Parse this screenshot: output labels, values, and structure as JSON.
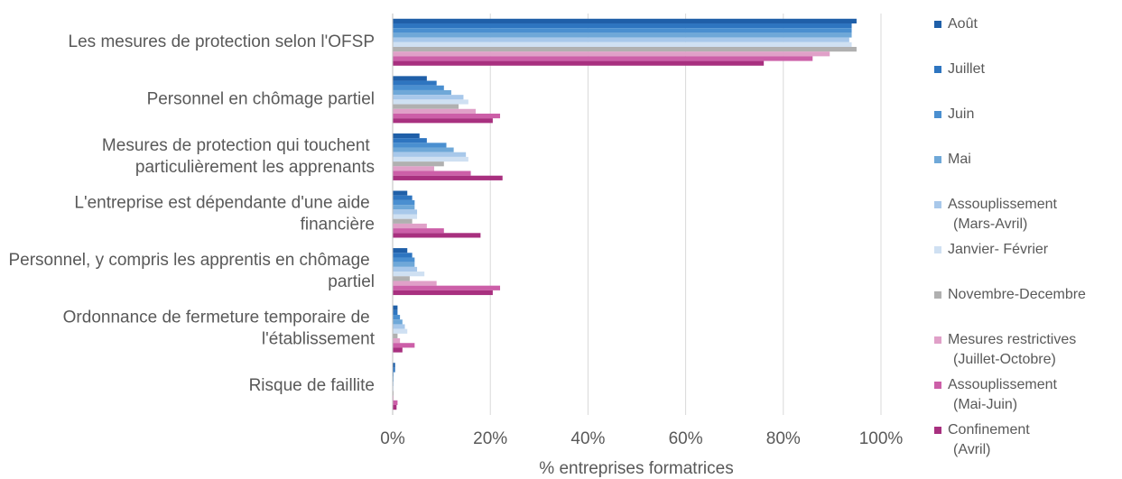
{
  "chart_data": {
    "type": "hbar",
    "xlabel": "% entreprises formatrices",
    "categories": [
      "Les mesures de protection selon l'OFSP",
      "Personnel en chômage partiel",
      "Mesures de protection qui touchent particulièrement les apprenants",
      "L'entreprise est dépendante d'une aide financière",
      "Personnel, y compris les apprentis en chômage partiel",
      "Ordonnance de fermeture temporaire de l'établissement",
      "Risque de faillite"
    ],
    "series": [
      {
        "name": "Août",
        "color": "#1f5fa8",
        "values": [
          95,
          7,
          5.5,
          3,
          3,
          1,
          0.5
        ]
      },
      {
        "name": "Juillet",
        "color": "#2e75c0",
        "values": [
          94,
          9,
          7,
          4,
          4,
          1,
          0.5
        ]
      },
      {
        "name": "Juin",
        "color": "#4a8fd0",
        "values": [
          94,
          10.5,
          11,
          4.5,
          4.5,
          1.5,
          0.2
        ]
      },
      {
        "name": "Mai",
        "color": "#6fa8d8",
        "values": [
          94,
          12,
          12.5,
          4.5,
          4.5,
          2,
          0.2
        ]
      },
      {
        "name": "Assouplissement (Mars-Avril)",
        "color": "#a8c8ea",
        "values": [
          93.5,
          14.5,
          15,
          5,
          5,
          2.5,
          0.2
        ]
      },
      {
        "name": "Janvier- Février",
        "color": "#cfe0f2",
        "values": [
          94,
          15.5,
          15.5,
          5,
          6.5,
          3,
          0.2
        ]
      },
      {
        "name": "Novembre-Decembre",
        "color": "#b0b0b0",
        "values": [
          95,
          13.5,
          10.5,
          4,
          3.5,
          1,
          0.2
        ]
      },
      {
        "name": "Mesures restrictives (Juillet-Octobre)",
        "color": "#e0a0c8",
        "values": [
          89.5,
          17,
          8.5,
          7,
          9,
          1.5,
          0.2
        ]
      },
      {
        "name": "Assouplissement (Mai-Juin)",
        "color": "#cc5fa8",
        "values": [
          86,
          22,
          16,
          10.5,
          22,
          4.5,
          1
        ]
      },
      {
        "name": "Confinement (Avril)",
        "color": "#a8307f",
        "values": [
          76,
          20.5,
          22.5,
          18,
          20.5,
          2,
          0.8
        ]
      }
    ],
    "xlim": [
      0,
      100
    ],
    "xticks": [
      {
        "value": 0,
        "label": "0%"
      },
      {
        "value": 20,
        "label": "20%"
      },
      {
        "value": 40,
        "label": "40%"
      },
      {
        "value": 60,
        "label": "60%"
      },
      {
        "value": 80,
        "label": "80%"
      },
      {
        "value": 100,
        "label": "100%"
      }
    ],
    "grid": true,
    "legend": "right"
  }
}
